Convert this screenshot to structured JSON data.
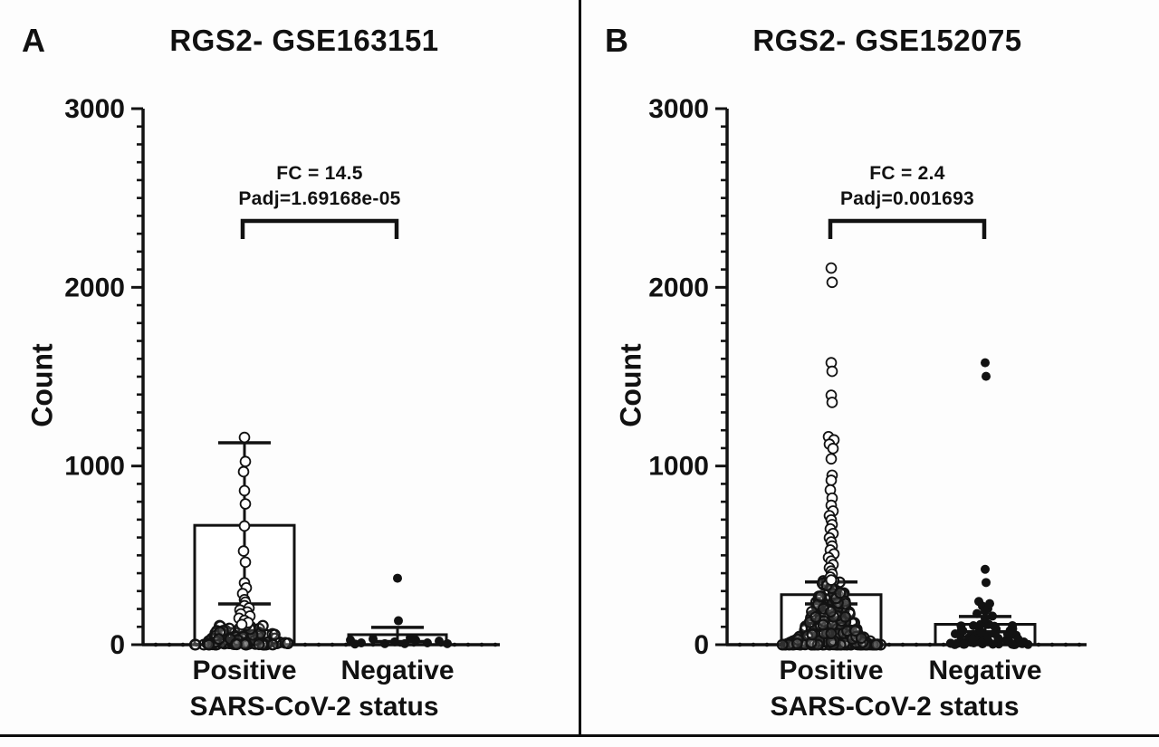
{
  "figure": {
    "background": "#ffffff",
    "ink_color": "#121212",
    "divider_x": 639,
    "bottom_rule_y": 811
  },
  "chart_data": {
    "type": "scatter",
    "subtype": "bar-with-dotplot, two panels, mean±SD error bars",
    "grid": false,
    "legend": "none",
    "panels": [
      {
        "letter": "A",
        "title": "RGS2- GSE163151",
        "fc_label": "FC = 14.5",
        "padj_label": "Padj=1.69168e-05",
        "xlabel": "SARS-CoV-2 status",
        "ylabel": "Count",
        "ylim": [
          0,
          3000
        ],
        "yticks": [
          0,
          1000,
          2000,
          3000
        ],
        "minor_tick_step": 100,
        "categories": [
          "Positive",
          "Negative"
        ],
        "groups": [
          {
            "label": "Positive",
            "marker": "open-circle",
            "bar_mean": 668,
            "sd_low": 228,
            "sd_high": 1130,
            "points": [
              [
                0,
                1160
              ],
              [
                1,
                1025
              ],
              [
                -1,
                968
              ],
              [
                0,
                862
              ],
              [
                1,
                788
              ],
              [
                0,
                664
              ],
              [
                -1,
                524
              ],
              [
                1,
                462
              ],
              [
                0,
                346
              ],
              [
                2,
                318
              ],
              [
                -2,
                286
              ],
              [
                0,
                252
              ],
              [
                1,
                238
              ],
              [
                0,
                218
              ],
              [
                5,
                205
              ],
              [
                -5,
                194
              ],
              [
                3,
                183
              ],
              [
                -4,
                172
              ],
              [
                6,
                160
              ],
              [
                -6,
                148
              ],
              [
                0,
                136
              ],
              [
                4,
                124
              ],
              [
                -3,
                113
              ]
            ],
            "cluster": {
              "n": 95,
              "vmax": 110,
              "spread": 57,
              "taper": 0.5,
              "power": 2.1,
              "seed": 11
            }
          },
          {
            "label": "Negative",
            "marker": "filled-circle",
            "bar_mean": 56,
            "sd_low": 18,
            "sd_high": 97,
            "points": [
              [
                0,
                372
              ],
              [
                1,
                134
              ],
              [
                -52,
                26
              ],
              [
                -40,
                10
              ],
              [
                -27,
                32
              ],
              [
                -14,
                6
              ],
              [
                -3,
                16
              ],
              [
                8,
                6
              ],
              [
                20,
                26
              ],
              [
                33,
                10
              ],
              [
                46,
                20
              ],
              [
                55,
                6
              ],
              [
                -47,
                4
              ],
              [
                14,
                38
              ]
            ],
            "cluster": {
              "n": 0,
              "vmax": 0,
              "spread": 0,
              "taper": 0,
              "power": 1,
              "seed": 1
            }
          }
        ]
      },
      {
        "letter": "B",
        "title": "RGS2- GSE152075",
        "fc_label": "FC = 2.4",
        "padj_label": "Padj=0.001693",
        "xlabel": "SARS-CoV-2 status",
        "ylabel": "Count",
        "ylim": [
          0,
          3000
        ],
        "yticks": [
          0,
          1000,
          2000,
          3000
        ],
        "minor_tick_step": 100,
        "categories": [
          "Positive",
          "Negative"
        ],
        "groups": [
          {
            "label": "Positive",
            "marker": "open-circle",
            "bar_mean": 280,
            "sd_low": 228,
            "sd_high": 351,
            "points": [
              [
                0,
                2108
              ],
              [
                1,
                2028
              ],
              [
                0,
                1578
              ],
              [
                1,
                1530
              ],
              [
                0,
                1396
              ],
              [
                1,
                1356
              ],
              [
                -3,
                1164
              ],
              [
                3,
                1146
              ],
              [
                -2,
                1122
              ],
              [
                2,
                1098
              ],
              [
                0,
                1040
              ],
              [
                1,
                948
              ],
              [
                0,
                920
              ],
              [
                -1,
                866
              ],
              [
                1,
                820
              ],
              [
                0,
                780
              ],
              [
                2,
                748
              ],
              [
                -2,
                722
              ],
              [
                0,
                698
              ],
              [
                1,
                672
              ],
              [
                -1,
                648
              ],
              [
                2,
                622
              ],
              [
                -2,
                598
              ],
              [
                0,
                575
              ],
              [
                1,
                552
              ],
              [
                -1,
                530
              ],
              [
                3,
                508
              ],
              [
                -3,
                488
              ],
              [
                0,
                468
              ],
              [
                2,
                448
              ],
              [
                -2,
                430
              ],
              [
                0,
                412
              ],
              [
                1,
                395
              ],
              [
                -1,
                378
              ],
              [
                0,
                362
              ]
            ],
            "cluster": {
              "n": 250,
              "vmax": 358,
              "spread": 56,
              "taper": 0.82,
              "power": 2.5,
              "seed": 23
            }
          },
          {
            "label": "Negative",
            "marker": "filled-circle",
            "bar_mean": 114,
            "sd_low": 72,
            "sd_high": 158,
            "points": [
              [
                0,
                1578
              ],
              [
                1,
                1502
              ],
              [
                0,
                422
              ],
              [
                1,
                348
              ],
              [
                -7,
                242
              ],
              [
                5,
                230
              ],
              [
                -3,
                216
              ],
              [
                3,
                202
              ],
              [
                0,
                188
              ],
              [
                -9,
                174
              ],
              [
                8,
                160
              ],
              [
                0,
                146
              ]
            ],
            "cluster": {
              "n": 60,
              "vmax": 118,
              "spread": 54,
              "taper": 0.45,
              "power": 1.9,
              "seed": 31
            }
          }
        ]
      }
    ]
  }
}
